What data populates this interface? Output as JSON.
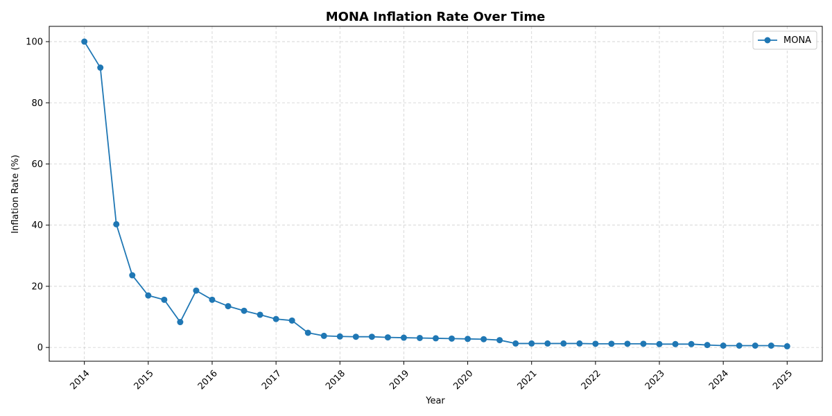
{
  "chart_data": {
    "type": "line",
    "title": "MONA Inflation Rate Over Time",
    "xlabel": "Year",
    "ylabel": "Inflation Rate (%)",
    "x_ticks": [
      "2014",
      "2015",
      "2016",
      "2017",
      "2018",
      "2019",
      "2020",
      "2021",
      "2022",
      "2023",
      "2024",
      "2025"
    ],
    "y_ticks": [
      0,
      20,
      40,
      60,
      80,
      100
    ],
    "xlim": [
      2013.45,
      2025.55
    ],
    "ylim": [
      -4.5,
      105
    ],
    "grid": true,
    "legend_position": "top-right",
    "series": [
      {
        "name": "MONA",
        "color": "#1f77b4",
        "x": [
          2014.0,
          2014.25,
          2014.5,
          2014.75,
          2015.0,
          2015.25,
          2015.5,
          2015.75,
          2016.0,
          2016.25,
          2016.5,
          2016.75,
          2017.0,
          2017.25,
          2017.5,
          2017.75,
          2018.0,
          2018.25,
          2018.5,
          2018.75,
          2019.0,
          2019.25,
          2019.5,
          2019.75,
          2020.0,
          2020.25,
          2020.5,
          2020.75,
          2021.0,
          2021.25,
          2021.5,
          2021.75,
          2022.0,
          2022.25,
          2022.5,
          2022.75,
          2023.0,
          2023.25,
          2023.5,
          2023.75,
          2024.0,
          2024.25,
          2024.5,
          2024.75,
          2025.0
        ],
        "values": [
          100,
          91.5,
          40.3,
          23.6,
          17.0,
          15.6,
          8.3,
          18.6,
          15.6,
          13.5,
          12.0,
          10.7,
          9.3,
          8.8,
          4.8,
          3.8,
          3.6,
          3.5,
          3.5,
          3.3,
          3.2,
          3.1,
          3.0,
          2.9,
          2.8,
          2.7,
          2.4,
          1.3,
          1.3,
          1.3,
          1.3,
          1.3,
          1.2,
          1.2,
          1.2,
          1.2,
          1.1,
          1.1,
          1.1,
          0.8,
          0.6,
          0.6,
          0.6,
          0.6,
          0.4
        ]
      }
    ]
  }
}
